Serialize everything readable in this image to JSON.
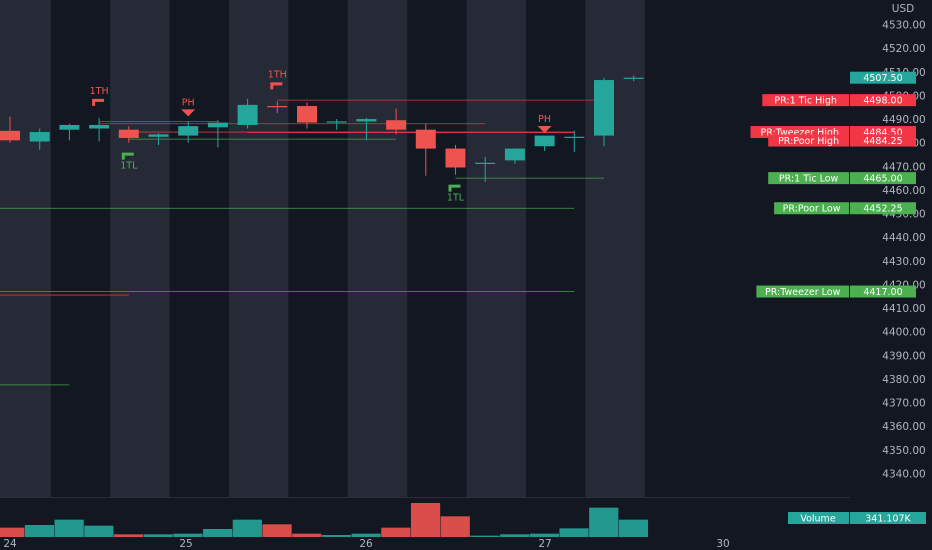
{
  "chart_data": {
    "type": "candlestick",
    "currency": "USD",
    "y_ticks": [
      4340,
      4350,
      4360,
      4370,
      4380,
      4390,
      4400,
      4410,
      4420,
      4430,
      4440,
      4450,
      4460,
      4470,
      4480,
      4490,
      4500,
      4510,
      4520,
      4530
    ],
    "y_tick_labels": [
      "4340.00",
      "4350.00",
      "4360.00",
      "4370.00",
      "4380.00",
      "4390.00",
      "4400.00",
      "4410.00",
      "4420.00",
      "4430.00",
      "4440.00",
      "4450.00",
      "4460.00",
      "4470.00",
      "4480.00",
      "4490.00",
      "4500.00",
      "4510.00",
      "4520.00",
      "4530.00"
    ],
    "ylim": [
      4333,
      4537
    ],
    "x_labels": [
      "24",
      "25",
      "26",
      "27",
      "30"
    ],
    "session_shading": [
      true,
      false,
      true,
      false,
      true,
      false,
      true,
      false,
      true,
      false,
      true
    ],
    "candles": [
      {
        "o": 4485.0,
        "h": 4491.0,
        "l": 4480.0,
        "c": 4481.0,
        "v": 14
      },
      {
        "o": 4480.5,
        "h": 4486.0,
        "l": 4477.0,
        "c": 4484.5,
        "v": 18
      },
      {
        "o": 4485.5,
        "h": 4488.0,
        "l": 4481.0,
        "c": 4487.5,
        "v": 26
      },
      {
        "o": 4486.0,
        "h": 4490.5,
        "l": 4480.5,
        "c": 4487.5,
        "v": 17
      },
      {
        "o": 4485.5,
        "h": 4487.0,
        "l": 4480.0,
        "c": 4482.0,
        "v": 4
      },
      {
        "o": 4482.5,
        "h": 4484.0,
        "l": 4479.0,
        "c": 4483.5,
        "v": 4
      },
      {
        "o": 4483.0,
        "h": 4489.0,
        "l": 4480.0,
        "c": 4487.0,
        "v": 5
      },
      {
        "o": 4486.5,
        "h": 4489.5,
        "l": 4478.0,
        "c": 4488.5,
        "v": 12
      },
      {
        "o": 4487.5,
        "h": 4498.5,
        "l": 4486.0,
        "c": 4496.0,
        "v": 26
      },
      {
        "o": 4495.5,
        "h": 4497.5,
        "l": 4492.5,
        "c": 4495.0,
        "v": 19
      },
      {
        "o": 4495.5,
        "h": 4497.0,
        "l": 4486.0,
        "c": 4488.5,
        "v": 5
      },
      {
        "o": 4488.5,
        "h": 4490.0,
        "l": 4485.5,
        "c": 4489.0,
        "v": 3
      },
      {
        "o": 4489.0,
        "h": 4490.5,
        "l": 4481.0,
        "c": 4490.0,
        "v": 5
      },
      {
        "o": 4489.5,
        "h": 4494.5,
        "l": 4483.5,
        "c": 4485.5,
        "v": 14
      },
      {
        "o": 4485.5,
        "h": 4488.0,
        "l": 4466.0,
        "c": 4477.5,
        "v": 51
      },
      {
        "o": 4477.5,
        "h": 4479.0,
        "l": 4466.5,
        "c": 4469.5,
        "v": 31
      },
      {
        "o": 4471.0,
        "h": 4474.0,
        "l": 4463.5,
        "c": 4471.5,
        "v": 2
      },
      {
        "o": 4472.5,
        "h": 4477.0,
        "l": 4471.0,
        "c": 4477.5,
        "v": 4
      },
      {
        "o": 4478.5,
        "h": 4482.0,
        "l": 4476.5,
        "c": 4483.0,
        "v": 5
      },
      {
        "o": 4482.5,
        "h": 4485.0,
        "l": 4476.0,
        "c": 4482.5,
        "v": 13
      },
      {
        "o": 4483.0,
        "h": 4507.5,
        "l": 4478.5,
        "c": 4506.5,
        "v": 44
      },
      {
        "o": 4507.5,
        "h": 4508.5,
        "l": 4506.0,
        "c": 4507.5,
        "v": 26
      }
    ],
    "current_price": {
      "label": "4507.50",
      "value": 4507.5
    },
    "levels": [
      {
        "name": "PR:1 Tic High",
        "price": 4498.0,
        "price_label": "4498.00",
        "kind": "high",
        "from_candle": 9,
        "to_candle": 20
      },
      {
        "name": "PR:Tweezer High",
        "price": 4484.5,
        "price_label": "4484.50",
        "kind": "high",
        "from_candle": 4,
        "to_candle": 19
      },
      {
        "name": "PR:Poor High",
        "price": 4484.25,
        "price_label": "4484.25",
        "kind": "high",
        "from_candle": 8,
        "to_candle": 19
      },
      {
        "name": "PR:1 Tic Low",
        "price": 4465.0,
        "price_label": "4465.00",
        "kind": "low",
        "from_candle": 15,
        "to_candle": 20
      },
      {
        "name": "PR:Poor Low",
        "price": 4452.25,
        "price_label": "4452.25",
        "kind": "low",
        "from_candle": -1,
        "to_candle": 19
      },
      {
        "name": "PR:Tweezer Low",
        "price": 4417.0,
        "price_label": "4417.00",
        "kind": "low",
        "from_candle": -1,
        "to_candle": 19
      }
    ],
    "extra_lines": [
      {
        "price": 4488.0,
        "kind": "high",
        "from_candle": 3,
        "to_candle": 16
      },
      {
        "price": 4489.0,
        "kind": "high",
        "from_candle": 3,
        "to_candle": 7
      },
      {
        "price": 4481.5,
        "kind": "low",
        "from_candle": 4,
        "to_candle": 13
      },
      {
        "price": 4415.5,
        "kind": "high",
        "from_candle": -1,
        "to_candle": 4
      },
      {
        "price": 4377.5,
        "kind": "low",
        "from_candle": -1,
        "to_candle": 2
      }
    ],
    "markers": [
      {
        "text": "1TH",
        "candle": 3,
        "type": "flag-high"
      },
      {
        "text": "1TL",
        "candle": 4,
        "type": "flag-low"
      },
      {
        "text": "PH",
        "candle": 6,
        "type": "triangle"
      },
      {
        "text": "1TH",
        "candle": 9,
        "type": "flag-high"
      },
      {
        "text": "1TL",
        "candle": 15,
        "type": "flag-low"
      },
      {
        "text": "PH",
        "candle": 18,
        "type": "triangle"
      }
    ],
    "volume": {
      "label": "Volume",
      "value_label": "341.107K",
      "max": 51
    }
  },
  "colors": {
    "background": "#131722",
    "shade": "#2a2e39",
    "up": "#26a69a",
    "down": "#ef5350",
    "axis_text": "#b2b5be",
    "up_level": "#4caf50",
    "down_level": "#f23645",
    "price_tag": "#26a69a"
  }
}
